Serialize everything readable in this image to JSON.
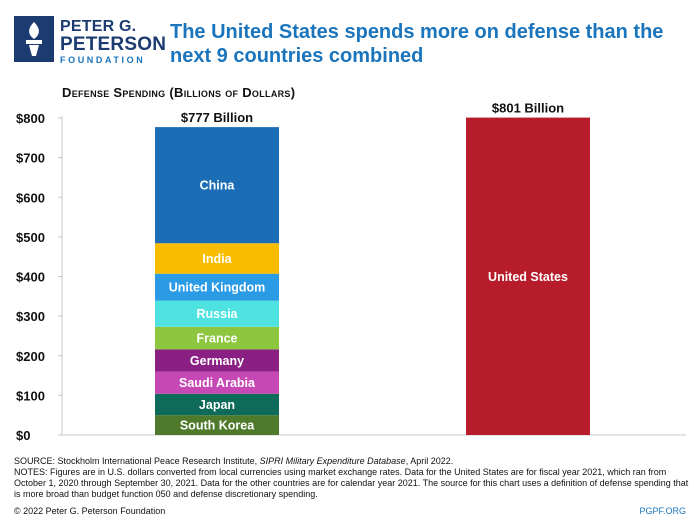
{
  "brand": {
    "line1": "PETER G.",
    "line2": "PETERSON",
    "line3": "FOUNDATION",
    "logo_color": "#1c3b70",
    "accent_color": "#1b75bc"
  },
  "title": "The United States spends more on defense than the next 9 countries combined",
  "chart_data": {
    "type": "bar",
    "stacked": true,
    "title": "Defense Spending (Billions of Dollars)",
    "xlabel": "",
    "ylabel": "",
    "ylim": [
      0,
      800
    ],
    "yticks": [
      0,
      100,
      200,
      300,
      400,
      500,
      600,
      700,
      800
    ],
    "ytick_labels": [
      "$0",
      "$100",
      "$200",
      "$300",
      "$400",
      "$500",
      "$600",
      "$700",
      "$800"
    ],
    "grid": false,
    "legend": "none",
    "bars": [
      {
        "total_label": "$777 Billion",
        "total": 777,
        "segments": [
          {
            "name": "South Korea",
            "value": 50,
            "color": "#4f7a2b"
          },
          {
            "name": "Japan",
            "value": 54,
            "color": "#0e6b5a"
          },
          {
            "name": "Saudi Arabia",
            "value": 56,
            "color": "#c548b4"
          },
          {
            "name": "Germany",
            "value": 56,
            "color": "#8a1f84"
          },
          {
            "name": "France",
            "value": 57,
            "color": "#8dc63f"
          },
          {
            "name": "Russia",
            "value": 66,
            "color": "#4ee2e0"
          },
          {
            "name": "United Kingdom",
            "value": 68,
            "color": "#2b9be6"
          },
          {
            "name": "India",
            "value": 77,
            "color": "#f8bc00"
          },
          {
            "name": "China",
            "value": 293,
            "color": "#1b6db5"
          }
        ]
      },
      {
        "total_label": "$801 Billion",
        "total": 801,
        "segments": [
          {
            "name": "United States",
            "value": 801,
            "color": "#b71c2b"
          }
        ]
      }
    ]
  },
  "source": {
    "source_prefix": "SOURCE: Stockholm International Peace Research Institute, ",
    "source_italic": "SIPRI Military Expenditure Database",
    "source_suffix": ", April 2022.",
    "notes": "NOTES: Figures are in U.S. dollars converted from local currencies using market exchange rates. Data for the United States are for fiscal year 2021, which ran from October 1, 2020 through September 30, 2021. Data for the other countries are for calendar year 2021. The source for this chart uses a definition of defense spending that is more broad than budget function 050 and defense discretionary spending."
  },
  "footer": {
    "copyright": "© 2022 Peter G. Peterson Foundation",
    "site": "PGPF.ORG"
  }
}
